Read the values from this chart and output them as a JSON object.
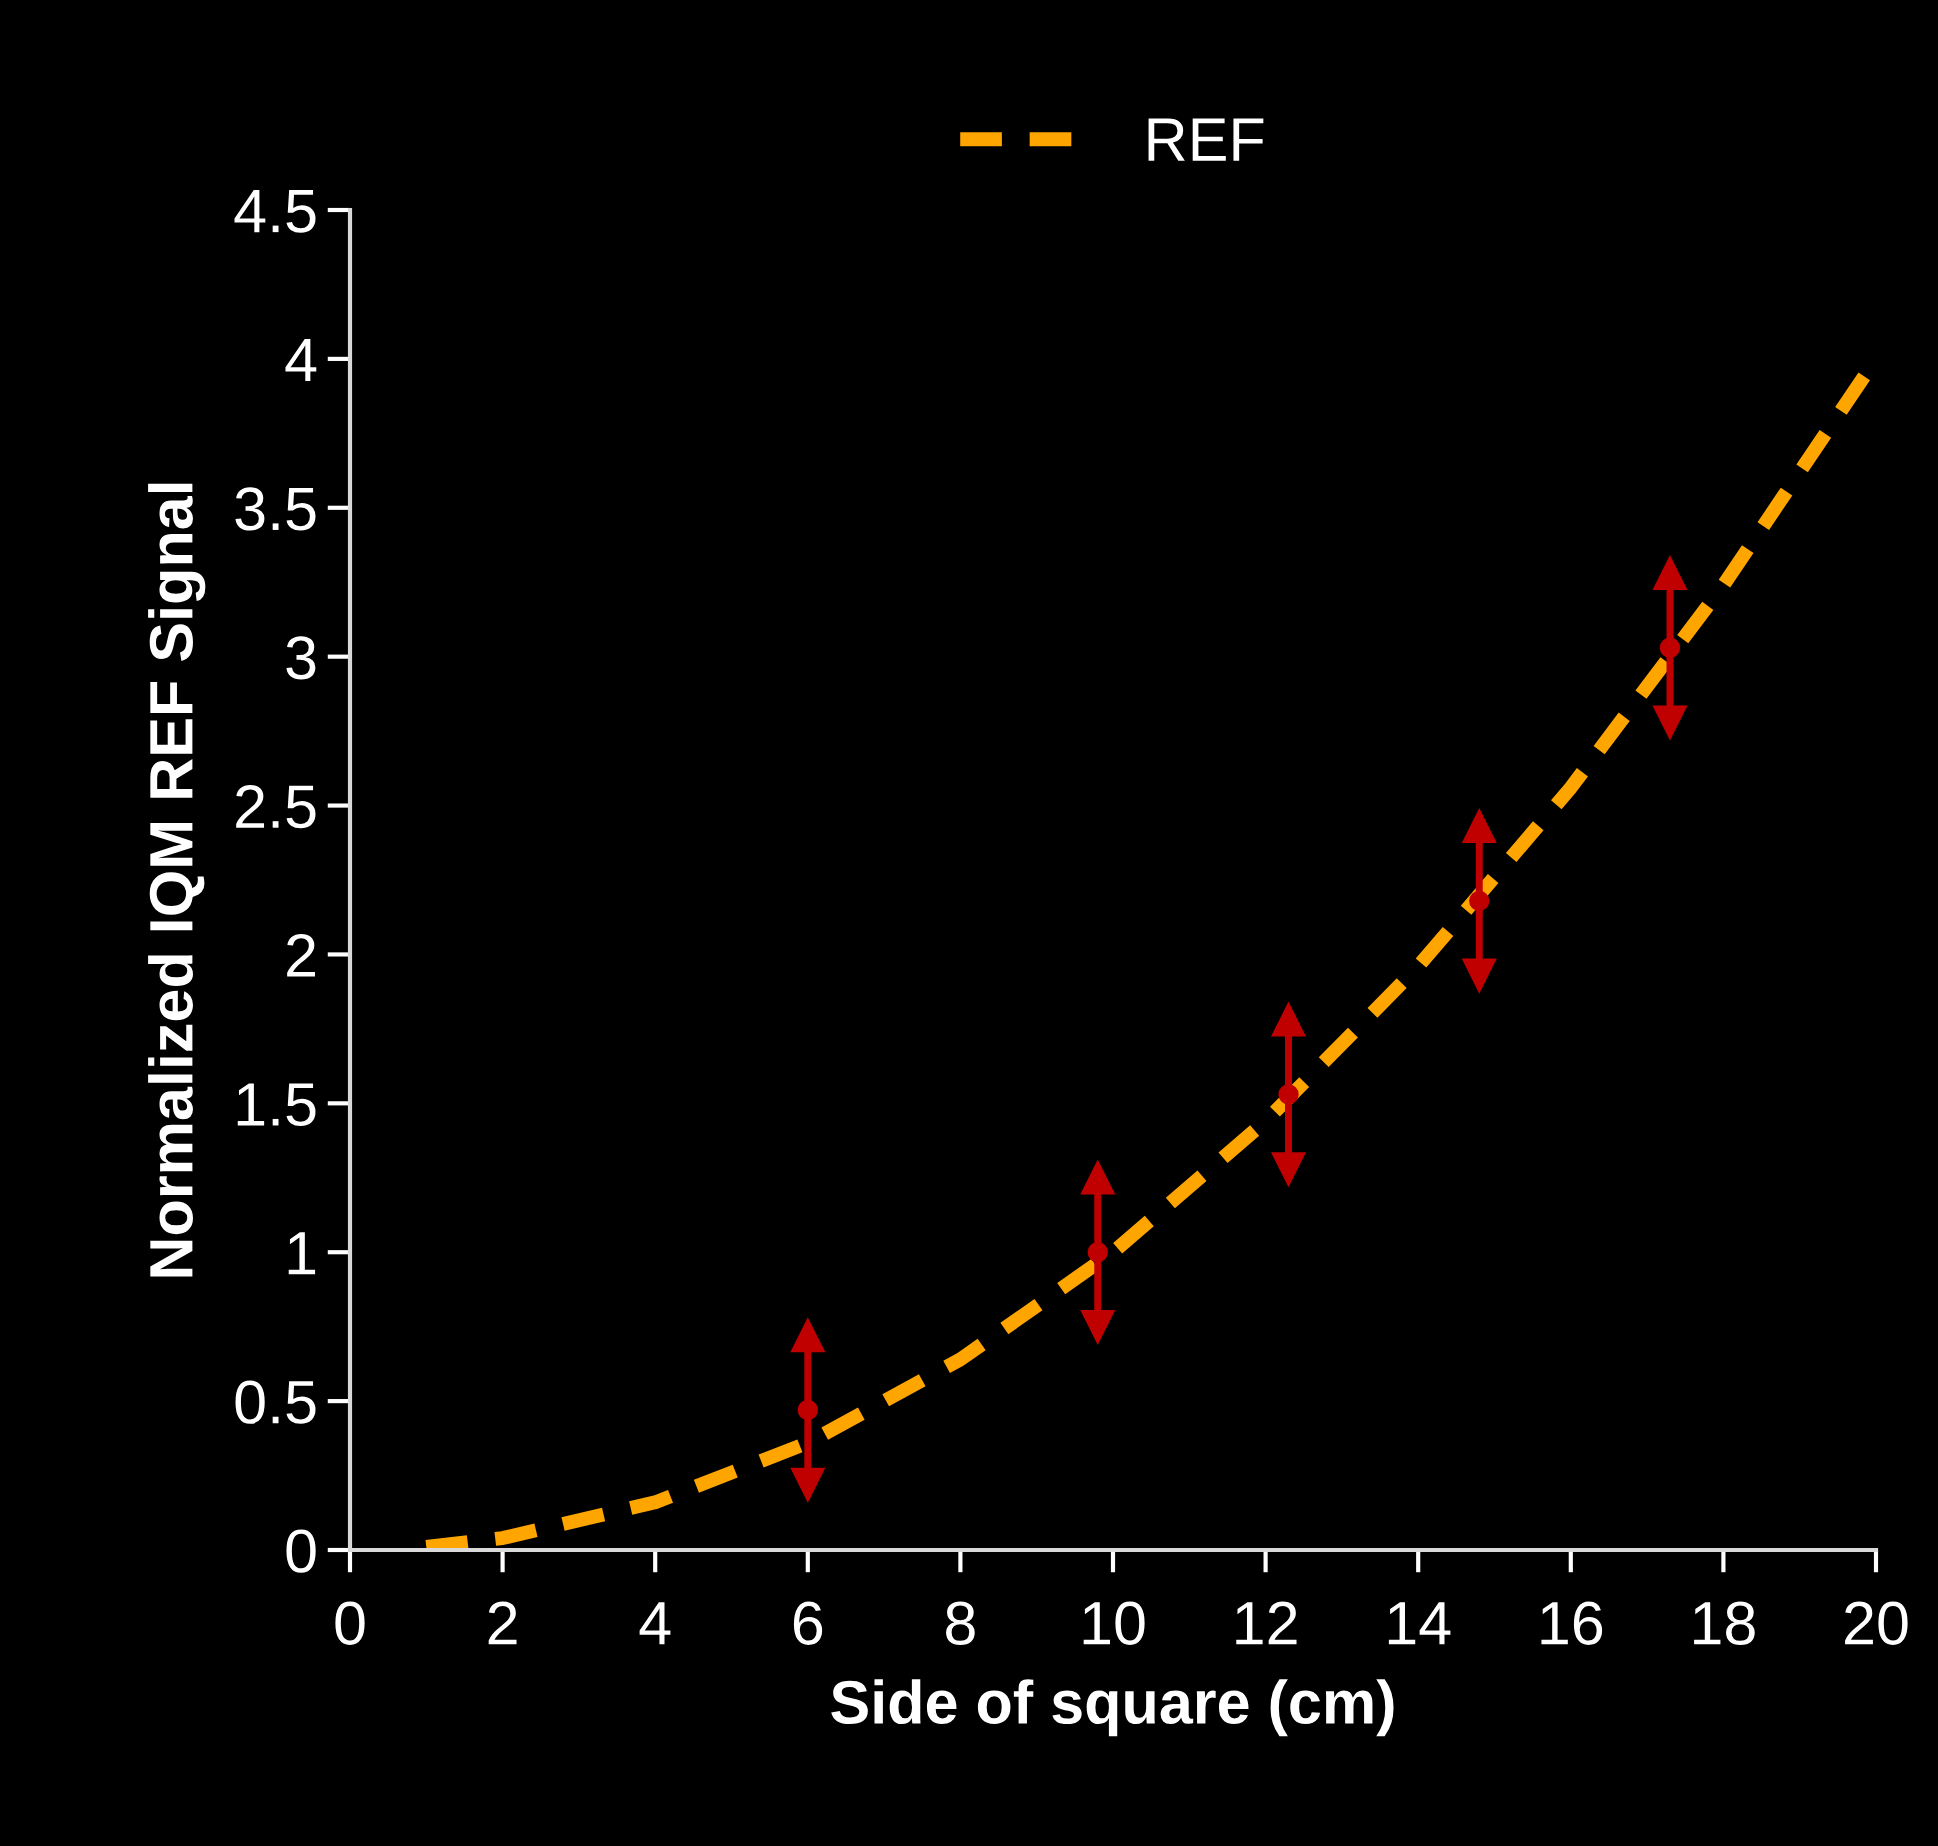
{
  "chart_data": {
    "type": "line",
    "xlabel": "Side of square (cm)",
    "ylabel": "Normalized IQM REF Signal",
    "series": [
      {
        "name": "REF",
        "color": "#ffa500",
        "line_style": "dashed",
        "marker": "none",
        "x": [
          1,
          2,
          4,
          6,
          8,
          10,
          12,
          14,
          16,
          18,
          20
        ],
        "values": [
          0.01,
          0.04,
          0.16,
          0.36,
          0.64,
          1.0,
          1.44,
          1.96,
          2.56,
          3.24,
          4.0
        ]
      },
      {
        "type": "scatter",
        "color": "#c00000",
        "marker": "circle",
        "x": [
          6,
          9.8,
          12.3,
          14.8,
          17.3
        ],
        "values": [
          0.47,
          1.0,
          1.53,
          2.18,
          3.03
        ],
        "errors": [
          [
            0.22,
            0.72
          ],
          [
            0.75,
            1.25
          ],
          [
            1.28,
            1.78
          ],
          [
            1.93,
            2.43
          ],
          [
            2.78,
            3.28
          ]
        ]
      }
    ],
    "xlim": [
      0,
      20
    ],
    "xticks": [
      0,
      2,
      4,
      6,
      8,
      10,
      12,
      14,
      16,
      18,
      20
    ],
    "ylim": [
      0,
      4.5
    ],
    "yticks": [
      0,
      0.5,
      1,
      1.5,
      2,
      2.5,
      3,
      3.5,
      4,
      4.5
    ],
    "grid": false,
    "legend": "top"
  }
}
